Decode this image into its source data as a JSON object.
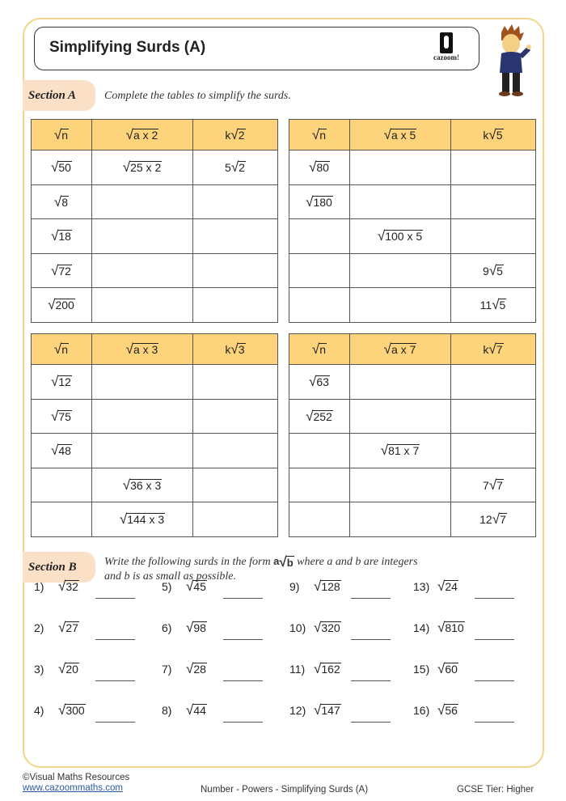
{
  "title": "Simplifying Surds (A)",
  "logo_text": "cazoom!",
  "colors": {
    "frame": "#f3d48a",
    "header": "#fdd47c",
    "section_tab": "#fbe0c8"
  },
  "section_a": {
    "label": "Section A",
    "instruction": "Complete the tables to simplify the surds.",
    "tables": [
      {
        "headers": [
          {
            "k": "",
            "r": "n"
          },
          {
            "k": "",
            "r": "a x 2"
          },
          {
            "k": "k",
            "r": "2"
          }
        ],
        "rows": [
          [
            {
              "k": "",
              "r": "50"
            },
            {
              "k": "",
              "r": "25 x 2"
            },
            {
              "k": "5",
              "r": "2"
            }
          ],
          [
            {
              "k": "",
              "r": "8"
            },
            null,
            null
          ],
          [
            {
              "k": "",
              "r": "18"
            },
            null,
            null
          ],
          [
            {
              "k": "",
              "r": "72"
            },
            null,
            null
          ],
          [
            {
              "k": "",
              "r": "200"
            },
            null,
            null
          ]
        ]
      },
      {
        "headers": [
          {
            "k": "",
            "r": "n"
          },
          {
            "k": "",
            "r": "a x 5"
          },
          {
            "k": "k",
            "r": "5"
          }
        ],
        "rows": [
          [
            {
              "k": "",
              "r": "80"
            },
            null,
            null
          ],
          [
            {
              "k": "",
              "r": "180"
            },
            null,
            null
          ],
          [
            null,
            {
              "k": "",
              "r": "100 x 5"
            },
            null
          ],
          [
            null,
            null,
            {
              "k": "9",
              "r": "5"
            }
          ],
          [
            null,
            null,
            {
              "k": "11",
              "r": "5"
            }
          ]
        ]
      },
      {
        "headers": [
          {
            "k": "",
            "r": "n"
          },
          {
            "k": "",
            "r": "a x 3"
          },
          {
            "k": "k",
            "r": "3"
          }
        ],
        "rows": [
          [
            {
              "k": "",
              "r": "12"
            },
            null,
            null
          ],
          [
            {
              "k": "",
              "r": "75"
            },
            null,
            null
          ],
          [
            {
              "k": "",
              "r": "48"
            },
            null,
            null
          ],
          [
            null,
            {
              "k": "",
              "r": "36 x 3"
            },
            null
          ],
          [
            null,
            {
              "k": "",
              "r": "144 x 3"
            },
            null
          ]
        ]
      },
      {
        "headers": [
          {
            "k": "",
            "r": "n"
          },
          {
            "k": "",
            "r": "a x 7"
          },
          {
            "k": "k",
            "r": "7"
          }
        ],
        "rows": [
          [
            {
              "k": "",
              "r": "63"
            },
            null,
            null
          ],
          [
            {
              "k": "",
              "r": "252"
            },
            null,
            null
          ],
          [
            null,
            {
              "k": "",
              "r": "81 x 7"
            },
            null
          ],
          [
            null,
            null,
            {
              "k": "7",
              "r": "7"
            }
          ],
          [
            null,
            null,
            {
              "k": "12",
              "r": "7"
            }
          ]
        ]
      }
    ]
  },
  "section_b": {
    "label": "Section B",
    "instruction_pre": "Write the following surds in the form ",
    "form": {
      "k": "a",
      "r": "b"
    },
    "instruction_post": " where a and b are integers",
    "instruction_line2": "and b is as small as possible.",
    "questions": [
      {
        "n": "1)",
        "r": "32"
      },
      {
        "n": "2)",
        "r": "27"
      },
      {
        "n": "3)",
        "r": "20"
      },
      {
        "n": "4)",
        "r": "300"
      },
      {
        "n": "5)",
        "r": "45"
      },
      {
        "n": "6)",
        "r": "98"
      },
      {
        "n": "7)",
        "r": "28"
      },
      {
        "n": "8)",
        "r": "44"
      },
      {
        "n": "9)",
        "r": "128"
      },
      {
        "n": "10)",
        "r": "320"
      },
      {
        "n": "11)",
        "r": "162"
      },
      {
        "n": "12)",
        "r": "147"
      },
      {
        "n": "13)",
        "r": "24"
      },
      {
        "n": "14)",
        "r": "810"
      },
      {
        "n": "15)",
        "r": "60"
      },
      {
        "n": "16)",
        "r": "56"
      }
    ]
  },
  "footer": {
    "copyright": "©Visual Maths Resources",
    "website": "www.cazoommaths.com",
    "topic": "Number - Powers - Simplifying Surds (A)",
    "tier": "GCSE Tier: Higher"
  }
}
